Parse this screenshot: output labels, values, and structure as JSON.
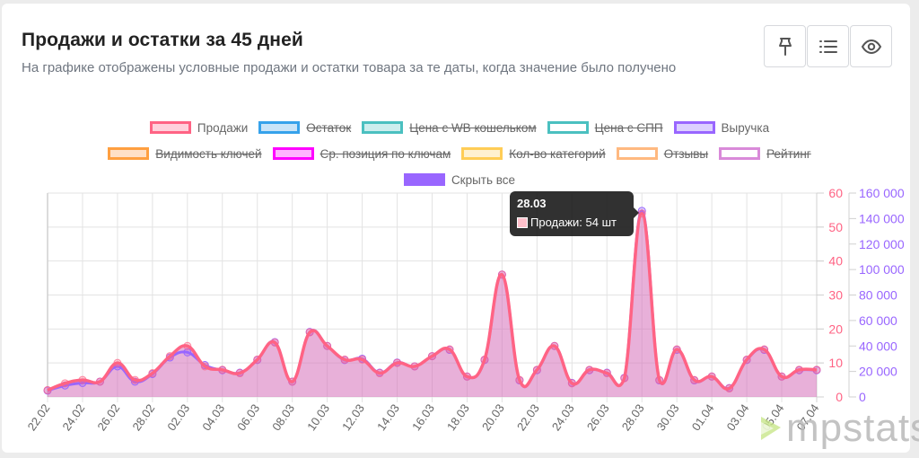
{
  "header": {
    "title": "Продажи и остатки за 45 дней",
    "subtitle": "На графике отображены условные продажи и остатки товара за те даты, когда значение было получено"
  },
  "toolbar": {
    "buttons": [
      {
        "name": "pin",
        "icon": "pin-icon"
      },
      {
        "name": "list",
        "icon": "list-icon"
      },
      {
        "name": "view",
        "icon": "eye-icon"
      }
    ]
  },
  "legend": {
    "rows": [
      [
        {
          "label": "Продажи",
          "border": "#ff6384",
          "fill": "#ffd1dc",
          "hidden": false
        },
        {
          "label": "Остаток",
          "border": "#36a2eb",
          "fill": "#c9e4f8",
          "hidden": true
        },
        {
          "label": "Цена с WB кошельком",
          "border": "#4bc0c0",
          "fill": "#cdeeee",
          "hidden": true
        },
        {
          "label": "Цена с СПП",
          "border": "#4bc0c0",
          "fill": "#ffffff",
          "hidden": true
        },
        {
          "label": "Выручка",
          "border": "#9966ff",
          "fill": "#dcd0ff",
          "hidden": false
        }
      ],
      [
        {
          "label": "Видимость ключей",
          "border": "#ff9f40",
          "fill": "#ffe0c6",
          "hidden": true
        },
        {
          "label": "Ср. позиция по ключам",
          "border": "#ff00ff",
          "fill": "#ffb3ff",
          "hidden": true
        },
        {
          "label": "Кол-во категорий",
          "border": "#ffcd56",
          "fill": "#fff1d0",
          "hidden": true
        },
        {
          "label": "Отзывы",
          "border": "#ffb980",
          "fill": "#ffffff",
          "hidden": true
        },
        {
          "label": "Рейтинг",
          "border": "#d98ad9",
          "fill": "#ffffff",
          "hidden": true
        }
      ]
    ],
    "hide_all": {
      "label": "Скрыть все",
      "color": "#9966ff"
    }
  },
  "tooltip": {
    "title": "28.03",
    "label": "Продажи: 54 шт"
  },
  "watermark": {
    "text": "mpstats"
  },
  "chart_data": {
    "type": "line",
    "title": "Продажи и остатки за 45 дней",
    "x": [
      "22.02",
      "23.02",
      "24.02",
      "25.02",
      "26.02",
      "27.02",
      "28.02",
      "01.03",
      "02.03",
      "03.03",
      "04.03",
      "05.03",
      "06.03",
      "07.03",
      "08.03",
      "09.03",
      "10.03",
      "11.03",
      "12.03",
      "13.03",
      "14.03",
      "15.03",
      "16.03",
      "17.03",
      "18.03",
      "19.03",
      "20.03",
      "21.03",
      "22.03",
      "23.03",
      "24.03",
      "25.03",
      "26.03",
      "27.03",
      "28.03",
      "29.03",
      "30.03",
      "31.03",
      "01.04",
      "02.04",
      "03.04",
      "04.04",
      "05.04",
      "06.04",
      "07.04"
    ],
    "x_tick_labels": [
      "22.02",
      "24.02",
      "26.02",
      "28.02",
      "02.03",
      "04.03",
      "06.03",
      "08.03",
      "10.03",
      "12.03",
      "14.03",
      "16.03",
      "18.03",
      "20.03",
      "22.03",
      "24.03",
      "26.03",
      "28.03",
      "30.03",
      "01.04",
      "03.04",
      "05.04",
      "07.04"
    ],
    "series": [
      {
        "name": "Продажи",
        "axis": "y_left",
        "color": "#ff6384",
        "fill": true,
        "values": [
          2,
          4,
          5,
          4.5,
          10,
          5,
          7,
          12,
          15,
          9,
          8,
          7,
          11,
          16,
          4.5,
          19,
          15,
          11,
          11,
          7,
          10,
          9,
          12,
          14,
          6,
          11,
          36,
          5,
          8,
          15,
          4,
          8,
          7,
          5.5,
          54,
          5,
          14,
          5,
          6,
          2.5,
          11,
          14,
          6,
          8,
          8
        ]
      },
      {
        "name": "Выручка",
        "axis": "y_right",
        "color": "#9966ff",
        "fill": false,
        "values": [
          5000,
          9000,
          11000,
          12000,
          24000,
          12000,
          18000,
          31000,
          35000,
          25000,
          21000,
          19000,
          29000,
          43000,
          12000,
          51000,
          40000,
          29000,
          30000,
          19000,
          27000,
          24000,
          32000,
          37000,
          16000,
          29000,
          96000,
          13000,
          21000,
          40000,
          11000,
          21000,
          19000,
          15000,
          146000,
          13000,
          37000,
          13000,
          16000,
          7000,
          29000,
          37000,
          16000,
          21000,
          21000
        ]
      }
    ],
    "axes": {
      "y_left": {
        "min": 0,
        "max": 60,
        "ticks": [
          0,
          10,
          20,
          30,
          40,
          50,
          60
        ],
        "color": "#ff6384"
      },
      "y_right": {
        "min": 0,
        "max": 160000,
        "ticks": [
          "0",
          "20 000",
          "40 000",
          "60 000",
          "80 000",
          "100 000",
          "120 000",
          "140 000",
          "160 000"
        ],
        "color": "#9966ff"
      }
    },
    "grid": true,
    "legend_position": "top"
  }
}
